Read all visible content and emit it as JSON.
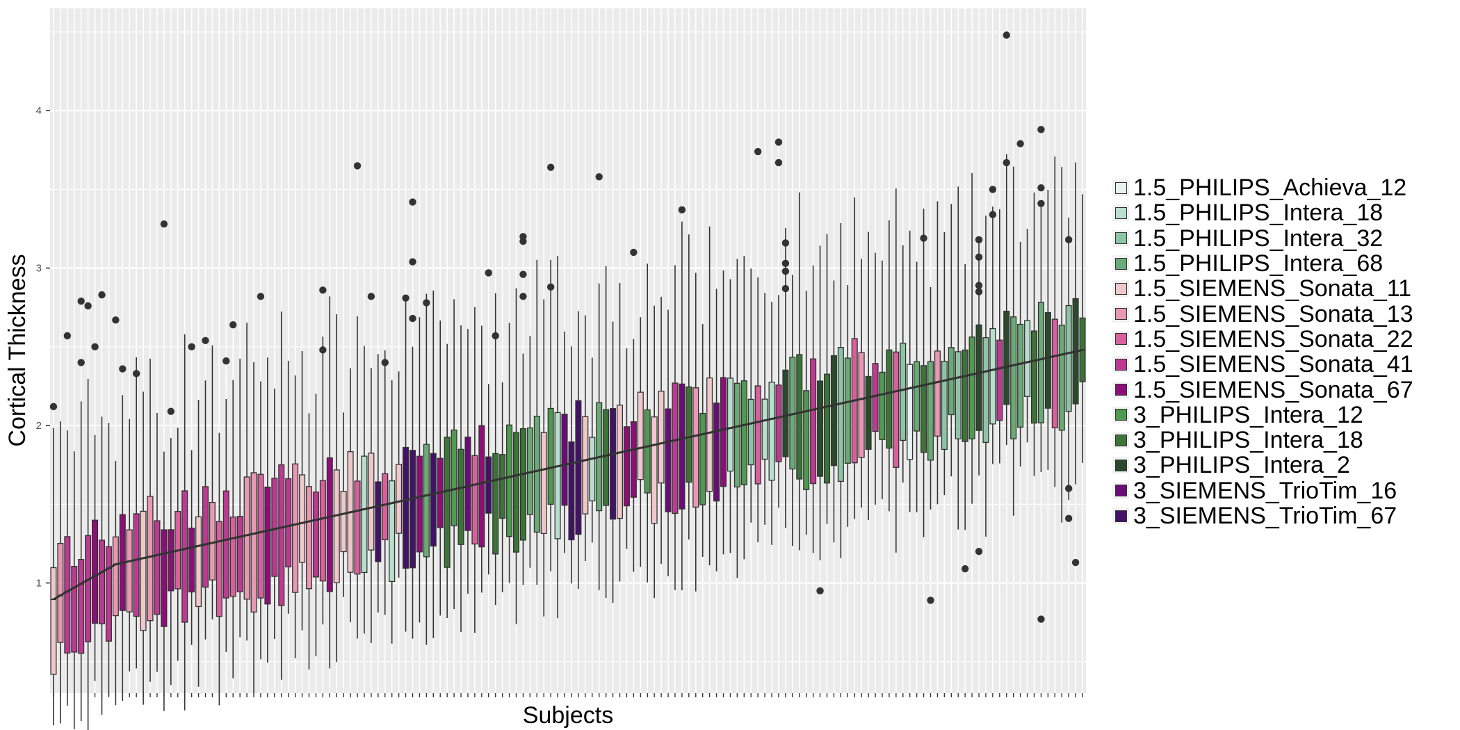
{
  "chart_data": {
    "type": "boxplot",
    "xlabel": "Subjects",
    "ylabel": "Cortical Thickness",
    "yticks": [
      1,
      2,
      3,
      4
    ],
    "ylim": [
      0.3,
      4.65
    ],
    "n_subjects": 150,
    "median_range": [
      0.87,
      2.48
    ],
    "grid": true,
    "legend_position": "right",
    "legend": [
      {
        "name": "1.5_PHILIPS_Achieva_12",
        "color": "#e6f3ef"
      },
      {
        "name": "1.5_PHILIPS_Intera_18",
        "color": "#b8dece"
      },
      {
        "name": "1.5_PHILIPS_Intera_32",
        "color": "#8dc4a4"
      },
      {
        "name": "1.5_PHILIPS_Intera_68",
        "color": "#6aaa76"
      },
      {
        "name": "1.5_SIEMENS_Sonata_11",
        "color": "#f0c8ca"
      },
      {
        "name": "1.5_SIEMENS_Sonata_13",
        "color": "#e898b2"
      },
      {
        "name": "1.5_SIEMENS_Sonata_22",
        "color": "#d8609c"
      },
      {
        "name": "1.5_SIEMENS_Sonata_41",
        "color": "#bc3a92"
      },
      {
        "name": "1.5_SIEMENS_Sonata_67",
        "color": "#8e0e78"
      },
      {
        "name": "3_PHILIPS_Intera_12",
        "color": "#4e9a50"
      },
      {
        "name": "3_PHILIPS_Intera_18",
        "color": "#3c7438"
      },
      {
        "name": "3_PHILIPS_Intera_2",
        "color": "#2b4a2c"
      },
      {
        "name": "3_SIEMENS_TrioTim_16",
        "color": "#6a0c78"
      },
      {
        "name": "3_SIEMENS_TrioTim_67",
        "color": "#44106a"
      }
    ],
    "outliers": [
      {
        "subject": 1,
        "value": 2.12
      },
      {
        "subject": 3,
        "value": 2.57
      },
      {
        "subject": 5,
        "value": 2.79
      },
      {
        "subject": 5,
        "value": 2.4
      },
      {
        "subject": 6,
        "value": 2.76
      },
      {
        "subject": 7,
        "value": 2.5
      },
      {
        "subject": 8,
        "value": 2.83
      },
      {
        "subject": 10,
        "value": 2.67
      },
      {
        "subject": 11,
        "value": 2.36
      },
      {
        "subject": 13,
        "value": 2.33
      },
      {
        "subject": 17,
        "value": 3.28
      },
      {
        "subject": 18,
        "value": 2.09
      },
      {
        "subject": 21,
        "value": 2.5
      },
      {
        "subject": 23,
        "value": 2.54
      },
      {
        "subject": 26,
        "value": 2.41
      },
      {
        "subject": 27,
        "value": 2.64
      },
      {
        "subject": 31,
        "value": 2.82
      },
      {
        "subject": 40,
        "value": 2.86
      },
      {
        "subject": 40,
        "value": 2.48
      },
      {
        "subject": 45,
        "value": 3.65
      },
      {
        "subject": 47,
        "value": 2.82
      },
      {
        "subject": 49,
        "value": 2.4
      },
      {
        "subject": 52,
        "value": 2.81
      },
      {
        "subject": 53,
        "value": 3.42
      },
      {
        "subject": 53,
        "value": 3.04
      },
      {
        "subject": 53,
        "value": 2.68
      },
      {
        "subject": 55,
        "value": 2.78
      },
      {
        "subject": 64,
        "value": 2.97
      },
      {
        "subject": 65,
        "value": 2.57
      },
      {
        "subject": 69,
        "value": 3.2
      },
      {
        "subject": 69,
        "value": 3.17
      },
      {
        "subject": 69,
        "value": 2.96
      },
      {
        "subject": 69,
        "value": 2.82
      },
      {
        "subject": 73,
        "value": 3.64
      },
      {
        "subject": 73,
        "value": 2.88
      },
      {
        "subject": 80,
        "value": 3.58
      },
      {
        "subject": 85,
        "value": 3.1
      },
      {
        "subject": 92,
        "value": 3.37
      },
      {
        "subject": 103,
        "value": 3.74
      },
      {
        "subject": 106,
        "value": 3.8
      },
      {
        "subject": 106,
        "value": 3.67
      },
      {
        "subject": 107,
        "value": 3.16
      },
      {
        "subject": 107,
        "value": 3.03
      },
      {
        "subject": 107,
        "value": 2.98
      },
      {
        "subject": 107,
        "value": 2.87
      },
      {
        "subject": 112,
        "value": 0.95
      },
      {
        "subject": 127,
        "value": 3.19
      },
      {
        "subject": 128,
        "value": 0.89
      },
      {
        "subject": 133,
        "value": 1.09
      },
      {
        "subject": 135,
        "value": 3.18
      },
      {
        "subject": 135,
        "value": 3.07
      },
      {
        "subject": 135,
        "value": 2.89
      },
      {
        "subject": 135,
        "value": 2.85
      },
      {
        "subject": 135,
        "value": 1.2
      },
      {
        "subject": 137,
        "value": 3.5
      },
      {
        "subject": 137,
        "value": 3.34
      },
      {
        "subject": 139,
        "value": 4.48
      },
      {
        "subject": 139,
        "value": 3.67
      },
      {
        "subject": 141,
        "value": 3.79
      },
      {
        "subject": 144,
        "value": 3.88
      },
      {
        "subject": 144,
        "value": 3.51
      },
      {
        "subject": 144,
        "value": 3.41
      },
      {
        "subject": 144,
        "value": 0.77
      },
      {
        "subject": 148,
        "value": 3.18
      },
      {
        "subject": 148,
        "value": 1.6
      },
      {
        "subject": 148,
        "value": 1.41
      },
      {
        "subject": 149,
        "value": 1.13
      }
    ]
  }
}
